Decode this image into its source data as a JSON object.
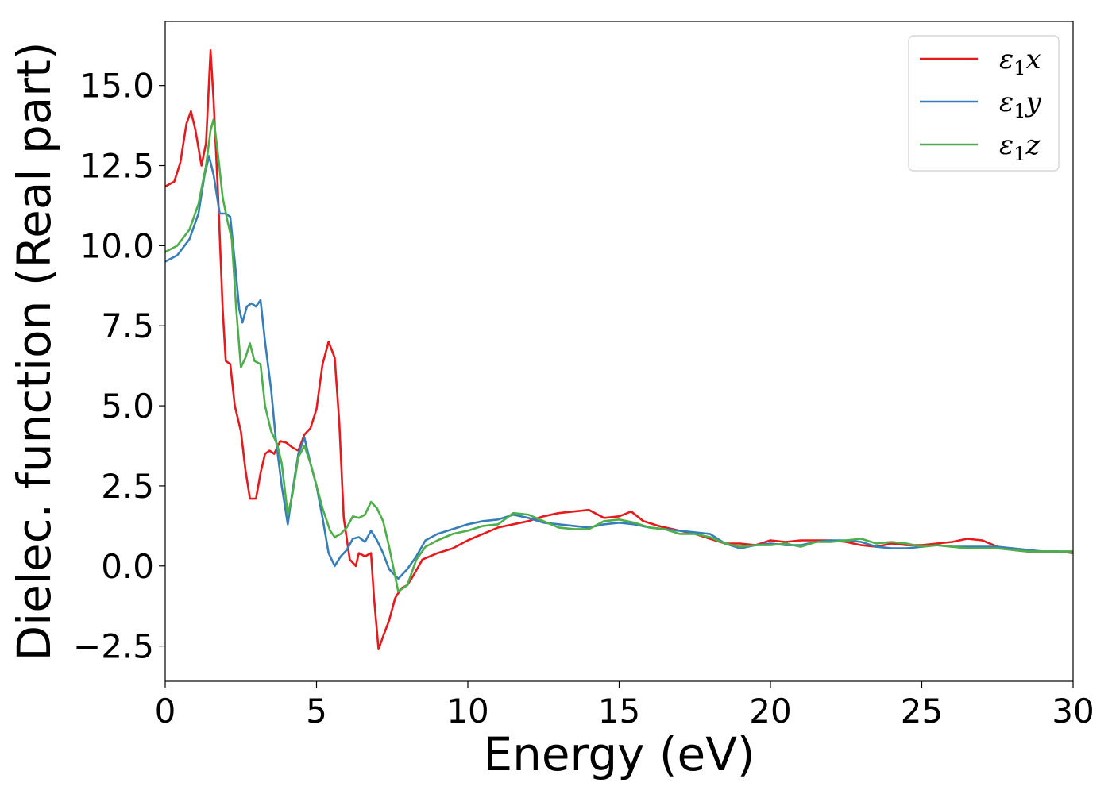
{
  "chart_data": {
    "type": "line",
    "title": "",
    "xlabel": "Energy (eV)",
    "ylabel": "Dielec. function (Real part)",
    "xlim": [
      0,
      30
    ],
    "ylim": [
      -3.6,
      17.0
    ],
    "xticks": [
      0,
      5,
      10,
      15,
      20,
      25,
      30
    ],
    "xtick_labels": [
      "0",
      "5",
      "10",
      "15",
      "20",
      "25",
      "30"
    ],
    "yticks": [
      -2.5,
      0.0,
      2.5,
      5.0,
      7.5,
      10.0,
      12.5,
      15.0
    ],
    "ytick_labels": [
      "−2.5",
      "0.0",
      "2.5",
      "5.0",
      "7.5",
      "10.0",
      "12.5",
      "15.0"
    ],
    "grid": false,
    "legend_position": "top-right",
    "series": [
      {
        "name": "ε₁x",
        "legend_base": "ε",
        "legend_sub": "1",
        "legend_var": "x",
        "color": "#e41a1c",
        "points": [
          [
            0,
            11.85
          ],
          [
            0.3,
            12.0
          ],
          [
            0.5,
            12.6
          ],
          [
            0.7,
            13.8
          ],
          [
            0.85,
            14.2
          ],
          [
            1.0,
            13.6
          ],
          [
            1.2,
            12.5
          ],
          [
            1.35,
            13.2
          ],
          [
            1.5,
            16.1
          ],
          [
            1.6,
            14.5
          ],
          [
            1.75,
            11.5
          ],
          [
            1.9,
            8.0
          ],
          [
            2.0,
            6.4
          ],
          [
            2.15,
            6.3
          ],
          [
            2.3,
            5.0
          ],
          [
            2.5,
            4.2
          ],
          [
            2.65,
            3.0
          ],
          [
            2.8,
            2.1
          ],
          [
            3.0,
            2.1
          ],
          [
            3.15,
            2.9
          ],
          [
            3.3,
            3.5
          ],
          [
            3.45,
            3.6
          ],
          [
            3.6,
            3.5
          ],
          [
            3.8,
            3.9
          ],
          [
            4.0,
            3.85
          ],
          [
            4.2,
            3.7
          ],
          [
            4.4,
            3.6
          ],
          [
            4.6,
            4.1
          ],
          [
            4.8,
            4.3
          ],
          [
            5.0,
            4.9
          ],
          [
            5.2,
            6.3
          ],
          [
            5.4,
            7.0
          ],
          [
            5.6,
            6.5
          ],
          [
            5.75,
            4.5
          ],
          [
            5.9,
            1.5
          ],
          [
            6.1,
            0.2
          ],
          [
            6.3,
            0.0
          ],
          [
            6.4,
            0.4
          ],
          [
            6.6,
            0.3
          ],
          [
            6.8,
            0.4
          ],
          [
            6.9,
            -1.0
          ],
          [
            7.05,
            -2.6
          ],
          [
            7.2,
            -2.2
          ],
          [
            7.4,
            -1.7
          ],
          [
            7.6,
            -1.0
          ],
          [
            7.8,
            -0.7
          ],
          [
            8.0,
            -0.6
          ],
          [
            8.2,
            -0.3
          ],
          [
            8.5,
            0.2
          ],
          [
            9.0,
            0.4
          ],
          [
            9.5,
            0.55
          ],
          [
            10.0,
            0.8
          ],
          [
            10.5,
            1.0
          ],
          [
            11.0,
            1.2
          ],
          [
            11.5,
            1.3
          ],
          [
            12.0,
            1.4
          ],
          [
            12.5,
            1.55
          ],
          [
            13.0,
            1.65
          ],
          [
            13.5,
            1.7
          ],
          [
            14.0,
            1.75
          ],
          [
            14.5,
            1.5
          ],
          [
            15.0,
            1.55
          ],
          [
            15.4,
            1.7
          ],
          [
            15.8,
            1.4
          ],
          [
            16.3,
            1.25
          ],
          [
            17.0,
            1.1
          ],
          [
            17.5,
            1.0
          ],
          [
            18.0,
            0.85
          ],
          [
            18.5,
            0.7
          ],
          [
            19.0,
            0.7
          ],
          [
            19.5,
            0.65
          ],
          [
            20.0,
            0.8
          ],
          [
            20.5,
            0.75
          ],
          [
            21.0,
            0.8
          ],
          [
            21.5,
            0.8
          ],
          [
            22.0,
            0.8
          ],
          [
            22.5,
            0.75
          ],
          [
            23.0,
            0.65
          ],
          [
            23.5,
            0.6
          ],
          [
            24.0,
            0.7
          ],
          [
            24.5,
            0.65
          ],
          [
            25.0,
            0.65
          ],
          [
            25.5,
            0.7
          ],
          [
            26.0,
            0.75
          ],
          [
            26.5,
            0.85
          ],
          [
            27.0,
            0.8
          ],
          [
            27.5,
            0.6
          ],
          [
            28.0,
            0.5
          ],
          [
            28.5,
            0.45
          ],
          [
            29.0,
            0.45
          ],
          [
            29.5,
            0.45
          ],
          [
            30.0,
            0.4
          ]
        ]
      },
      {
        "name": "ε₁y",
        "legend_base": "ε",
        "legend_sub": "1",
        "legend_var": "y",
        "color": "#377eb8",
        "points": [
          [
            0,
            9.5
          ],
          [
            0.4,
            9.7
          ],
          [
            0.8,
            10.2
          ],
          [
            1.1,
            11.0
          ],
          [
            1.3,
            12.2
          ],
          [
            1.45,
            12.8
          ],
          [
            1.6,
            12.2
          ],
          [
            1.8,
            11.0
          ],
          [
            2.0,
            11.0
          ],
          [
            2.15,
            10.9
          ],
          [
            2.3,
            9.5
          ],
          [
            2.45,
            8.0
          ],
          [
            2.55,
            7.6
          ],
          [
            2.7,
            8.1
          ],
          [
            2.85,
            8.2
          ],
          [
            3.0,
            8.1
          ],
          [
            3.15,
            8.3
          ],
          [
            3.3,
            7.0
          ],
          [
            3.5,
            5.5
          ],
          [
            3.65,
            4.0
          ],
          [
            3.85,
            2.5
          ],
          [
            4.05,
            1.3
          ],
          [
            4.2,
            2.3
          ],
          [
            4.4,
            3.5
          ],
          [
            4.6,
            4.0
          ],
          [
            4.8,
            3.2
          ],
          [
            5.0,
            2.5
          ],
          [
            5.2,
            1.5
          ],
          [
            5.4,
            0.4
          ],
          [
            5.6,
            0.0
          ],
          [
            5.8,
            0.3
          ],
          [
            6.0,
            0.5
          ],
          [
            6.2,
            0.85
          ],
          [
            6.4,
            0.9
          ],
          [
            6.6,
            0.75
          ],
          [
            6.8,
            1.1
          ],
          [
            7.0,
            0.8
          ],
          [
            7.2,
            0.4
          ],
          [
            7.4,
            -0.1
          ],
          [
            7.7,
            -0.4
          ],
          [
            8.0,
            -0.1
          ],
          [
            8.3,
            0.3
          ],
          [
            8.6,
            0.8
          ],
          [
            9.0,
            1.0
          ],
          [
            9.5,
            1.15
          ],
          [
            10.0,
            1.3
          ],
          [
            10.5,
            1.4
          ],
          [
            11.0,
            1.45
          ],
          [
            11.5,
            1.6
          ],
          [
            12.0,
            1.5
          ],
          [
            12.5,
            1.35
          ],
          [
            13.0,
            1.3
          ],
          [
            13.5,
            1.25
          ],
          [
            14.0,
            1.2
          ],
          [
            14.5,
            1.3
          ],
          [
            15.0,
            1.35
          ],
          [
            15.5,
            1.3
          ],
          [
            16.0,
            1.2
          ],
          [
            16.5,
            1.15
          ],
          [
            17.0,
            1.1
          ],
          [
            17.5,
            1.05
          ],
          [
            18.0,
            1.0
          ],
          [
            18.5,
            0.7
          ],
          [
            19.0,
            0.55
          ],
          [
            19.5,
            0.65
          ],
          [
            20.0,
            0.7
          ],
          [
            20.5,
            0.65
          ],
          [
            21.0,
            0.65
          ],
          [
            21.5,
            0.75
          ],
          [
            22.0,
            0.8
          ],
          [
            22.5,
            0.8
          ],
          [
            23.0,
            0.75
          ],
          [
            23.5,
            0.6
          ],
          [
            24.0,
            0.55
          ],
          [
            24.5,
            0.55
          ],
          [
            25.0,
            0.6
          ],
          [
            25.5,
            0.65
          ],
          [
            26.0,
            0.6
          ],
          [
            26.5,
            0.6
          ],
          [
            27.0,
            0.6
          ],
          [
            27.5,
            0.6
          ],
          [
            28.0,
            0.55
          ],
          [
            28.5,
            0.5
          ],
          [
            29.0,
            0.45
          ],
          [
            29.5,
            0.45
          ],
          [
            30.0,
            0.45
          ]
        ]
      },
      {
        "name": "ε₁z",
        "legend_base": "ε",
        "legend_sub": "1",
        "legend_var": "z",
        "color": "#4daf4a",
        "points": [
          [
            0,
            9.8
          ],
          [
            0.4,
            10.0
          ],
          [
            0.8,
            10.5
          ],
          [
            1.1,
            11.3
          ],
          [
            1.35,
            12.5
          ],
          [
            1.5,
            13.6
          ],
          [
            1.6,
            13.95
          ],
          [
            1.75,
            12.8
          ],
          [
            1.9,
            11.5
          ],
          [
            2.05,
            10.8
          ],
          [
            2.2,
            10.2
          ],
          [
            2.35,
            8.0
          ],
          [
            2.5,
            6.2
          ],
          [
            2.65,
            6.5
          ],
          [
            2.8,
            6.95
          ],
          [
            2.95,
            6.4
          ],
          [
            3.15,
            6.3
          ],
          [
            3.3,
            5.0
          ],
          [
            3.5,
            4.2
          ],
          [
            3.7,
            3.8
          ],
          [
            3.85,
            3.2
          ],
          [
            4.05,
            1.6
          ],
          [
            4.2,
            2.2
          ],
          [
            4.4,
            3.4
          ],
          [
            4.6,
            3.75
          ],
          [
            4.8,
            3.2
          ],
          [
            5.0,
            2.5
          ],
          [
            5.2,
            1.8
          ],
          [
            5.45,
            1.1
          ],
          [
            5.6,
            0.9
          ],
          [
            5.8,
            1.0
          ],
          [
            6.0,
            1.2
          ],
          [
            6.2,
            1.55
          ],
          [
            6.4,
            1.5
          ],
          [
            6.6,
            1.6
          ],
          [
            6.8,
            2.0
          ],
          [
            7.0,
            1.8
          ],
          [
            7.2,
            1.4
          ],
          [
            7.4,
            0.6
          ],
          [
            7.7,
            -0.8
          ],
          [
            8.0,
            -0.6
          ],
          [
            8.3,
            0.2
          ],
          [
            8.6,
            0.6
          ],
          [
            9.0,
            0.8
          ],
          [
            9.5,
            1.0
          ],
          [
            10.0,
            1.1
          ],
          [
            10.5,
            1.25
          ],
          [
            11.0,
            1.3
          ],
          [
            11.5,
            1.65
          ],
          [
            12.0,
            1.6
          ],
          [
            12.5,
            1.4
          ],
          [
            13.0,
            1.2
          ],
          [
            13.5,
            1.15
          ],
          [
            14.0,
            1.15
          ],
          [
            14.5,
            1.4
          ],
          [
            15.0,
            1.45
          ],
          [
            15.5,
            1.35
          ],
          [
            16.0,
            1.2
          ],
          [
            16.5,
            1.15
          ],
          [
            17.0,
            1.0
          ],
          [
            17.5,
            1.0
          ],
          [
            18.0,
            0.9
          ],
          [
            18.5,
            0.7
          ],
          [
            19.0,
            0.6
          ],
          [
            19.5,
            0.65
          ],
          [
            20.0,
            0.65
          ],
          [
            20.5,
            0.7
          ],
          [
            21.0,
            0.6
          ],
          [
            21.5,
            0.75
          ],
          [
            22.0,
            0.75
          ],
          [
            22.5,
            0.8
          ],
          [
            23.0,
            0.85
          ],
          [
            23.5,
            0.7
          ],
          [
            24.0,
            0.75
          ],
          [
            24.5,
            0.7
          ],
          [
            25.0,
            0.6
          ],
          [
            25.5,
            0.65
          ],
          [
            26.0,
            0.6
          ],
          [
            26.5,
            0.55
          ],
          [
            27.0,
            0.55
          ],
          [
            27.5,
            0.55
          ],
          [
            28.0,
            0.5
          ],
          [
            28.5,
            0.45
          ],
          [
            29.0,
            0.45
          ],
          [
            29.5,
            0.45
          ],
          [
            30.0,
            0.45
          ]
        ]
      }
    ]
  }
}
